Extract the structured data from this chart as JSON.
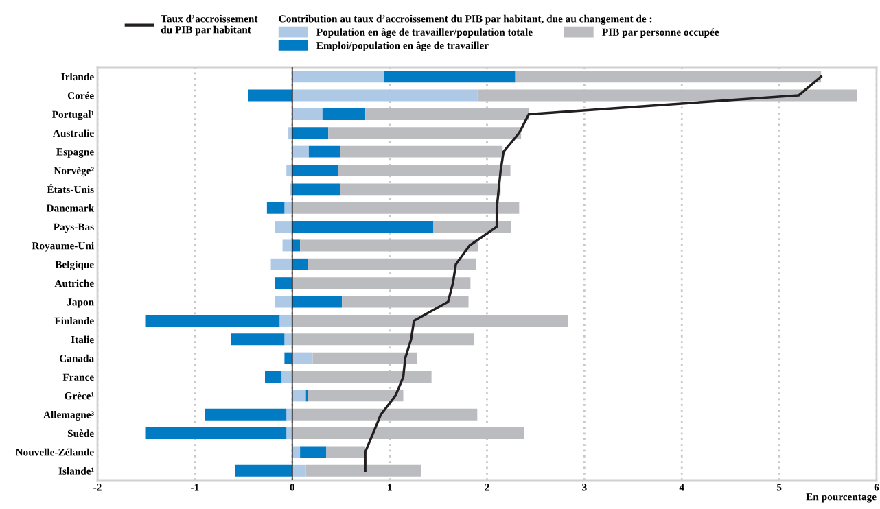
{
  "chart_data": {
    "type": "bar",
    "orientation": "horizontal",
    "stacked": true,
    "categories": [
      "Irlande",
      "Corée",
      "Portugal¹",
      "Australie",
      "Espagne",
      "Norvège²",
      "États-Unis",
      "Danemark",
      "Pays-Bas",
      "Royaume-Uni",
      "Belgique",
      "Autriche",
      "Japon",
      "Finlande",
      "Italie",
      "Canada",
      "France",
      "Grèce¹",
      "Allemagne³",
      "Suède",
      "Nouvelle-Zélande",
      "Islande¹"
    ],
    "series": [
      {
        "name": "Population en âge de travailler/population totale",
        "color": "#aec9e6",
        "values": [
          0.94,
          1.9,
          0.31,
          -0.04,
          0.17,
          -0.06,
          -0.02,
          -0.08,
          -0.18,
          -0.1,
          -0.22,
          0,
          -0.18,
          -0.13,
          -0.08,
          0.21,
          -0.11,
          0.14,
          -0.06,
          -0.06,
          0.08,
          0.14
        ]
      },
      {
        "name": "Emploi/population en âge de travailler",
        "color": "#007bc4",
        "values": [
          1.35,
          -0.45,
          0.44,
          0.37,
          0.32,
          0.47,
          0.49,
          -0.18,
          1.45,
          0.08,
          0.16,
          -0.18,
          0.51,
          -1.38,
          -0.55,
          -0.08,
          -0.17,
          0.02,
          -0.84,
          -1.45,
          0.27,
          -0.59
        ]
      },
      {
        "name": "PIB par personne occupée",
        "color": "#bbbcbf",
        "values": [
          3.14,
          3.9,
          1.68,
          1.98,
          1.67,
          1.77,
          1.65,
          2.33,
          0.8,
          1.83,
          1.73,
          1.83,
          1.3,
          2.83,
          1.87,
          1.07,
          1.43,
          0.98,
          1.9,
          2.38,
          0.4,
          1.18
        ]
      },
      {
        "name": "Taux d’accroissement du PIB par habitant",
        "type": "line",
        "color": "#231f20",
        "values": [
          5.43,
          5.2,
          2.43,
          2.33,
          2.17,
          2.14,
          2.12,
          2.1,
          2.1,
          1.82,
          1.68,
          1.65,
          1.6,
          1.25,
          1.22,
          1.16,
          1.14,
          1.06,
          0.91,
          0.83,
          0.75,
          0.75
        ]
      }
    ],
    "legend_title": "Contribution au taux d’accroissement du PIB par habitant, due au changement de :",
    "legend": "top",
    "xlim": [
      -2,
      6
    ],
    "xticks": [
      -2,
      -1,
      0,
      1,
      2,
      3,
      4,
      5,
      6
    ],
    "xlabel": "En pourcentage",
    "grid": "x",
    "ref_lines": [
      {
        "axis": "x",
        "value": 0,
        "color": "#231f20"
      }
    ]
  }
}
